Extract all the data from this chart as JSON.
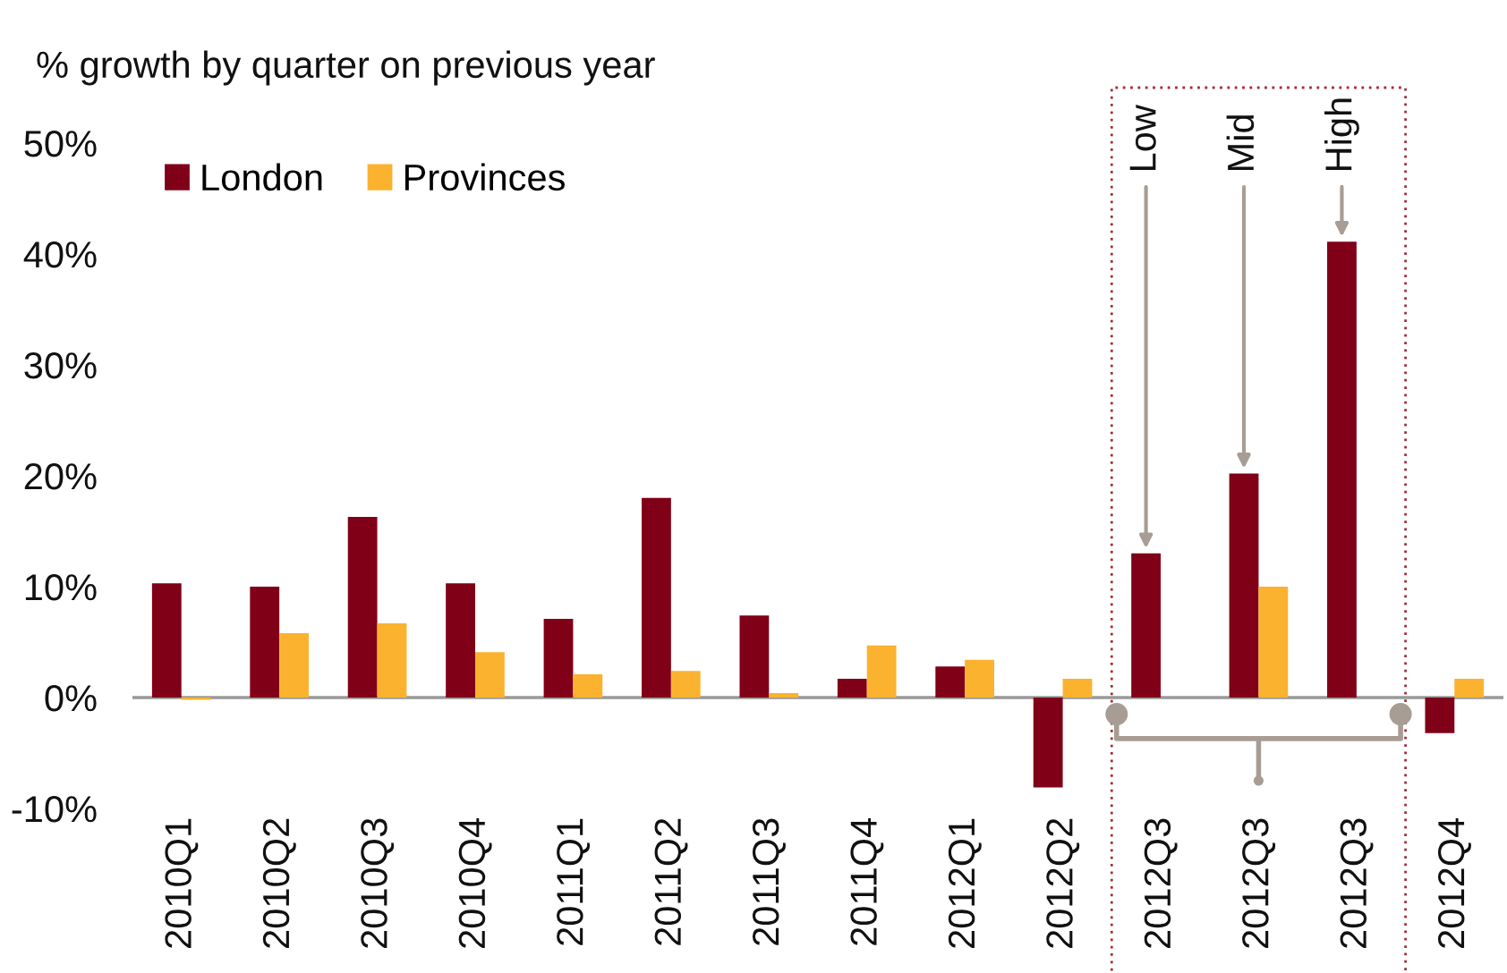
{
  "chart_data": {
    "type": "bar",
    "title": "% growth by quarter on previous year",
    "categories": [
      "2010Q1",
      "2010Q2",
      "2010Q3",
      "2010Q4",
      "2011Q1",
      "2011Q2",
      "2011Q3",
      "2011Q4",
      "2012Q1",
      "2012Q2",
      "2012Q3",
      "2012Q3",
      "2012Q3",
      "2012Q4"
    ],
    "series": [
      {
        "name": "London",
        "color": "#800018",
        "values": [
          10.3,
          10.0,
          16.3,
          10.3,
          7.1,
          18.0,
          7.4,
          1.7,
          2.8,
          -8.1,
          13.0,
          20.2,
          41.1,
          -3.2
        ]
      },
      {
        "name": "Provinces",
        "color": "#fbb22f",
        "values": [
          -0.2,
          5.8,
          6.7,
          4.1,
          2.1,
          2.4,
          0.4,
          4.7,
          3.4,
          1.7,
          null,
          10.0,
          null,
          1.7
        ]
      }
    ],
    "ylim": [
      -10,
      50
    ],
    "yticks": [
      {
        "value": -10,
        "label": "-10%"
      },
      {
        "value": 0,
        "label": "0%"
      },
      {
        "value": 10,
        "label": "10%"
      },
      {
        "value": 20,
        "label": "20%"
      },
      {
        "value": 30,
        "label": "30%"
      },
      {
        "value": 40,
        "label": "40%"
      },
      {
        "value": 50,
        "label": "50%"
      }
    ],
    "ref_lines": [
      {
        "axis": "y",
        "value": 0,
        "color": "#999999"
      }
    ],
    "annotations": [
      "Low",
      "Mid",
      "High"
    ],
    "grid": false,
    "legend": "top left"
  }
}
